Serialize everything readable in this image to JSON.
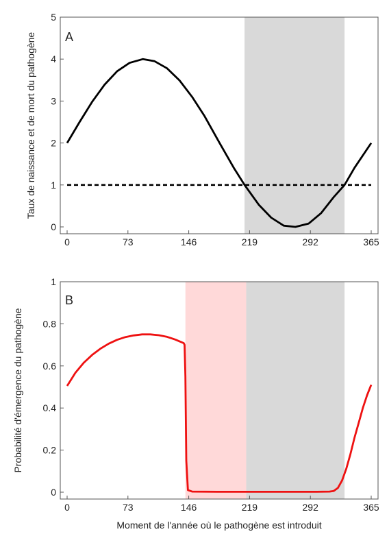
{
  "xlabel": "Moment de l'année où le pathogène est introduit",
  "chart_data": [
    {
      "type": "line",
      "panel_label": "A",
      "ylabel": "Taux de naissance et de mort du pathogène",
      "xlim": [
        0,
        365
      ],
      "ylim": [
        0,
        5
      ],
      "xticks": [
        0,
        73,
        146,
        219,
        292,
        365
      ],
      "yticks": [
        0,
        1,
        2,
        3,
        4,
        5
      ],
      "shaded_regions": [
        {
          "from": 213,
          "to": 333,
          "color": "#d9d9d9"
        }
      ],
      "series": [
        {
          "style": "solid",
          "color": "#000000",
          "x": [
            0,
            15,
            30,
            45,
            60,
            75,
            91,
            105,
            120,
            135,
            150,
            165,
            183,
            200,
            213,
            230,
            245,
            260,
            274,
            290,
            305,
            320,
            333,
            345,
            365
          ],
          "y": [
            2.0,
            2.5,
            2.98,
            3.39,
            3.71,
            3.91,
            4.0,
            3.95,
            3.78,
            3.49,
            3.1,
            2.64,
            2.0,
            1.41,
            1.0,
            0.53,
            0.22,
            0.03,
            0.0,
            0.08,
            0.33,
            0.71,
            1.0,
            1.41,
            2.0
          ]
        },
        {
          "style": "dashed",
          "color": "#000000",
          "x": [
            0,
            365
          ],
          "y": [
            1,
            1
          ]
        }
      ]
    },
    {
      "type": "line",
      "panel_label": "B",
      "ylabel": "Probabilité d'émergence du pathogène",
      "xlim": [
        0,
        365
      ],
      "ylim": [
        0,
        1
      ],
      "xticks": [
        0,
        73,
        146,
        219,
        292,
        365
      ],
      "yticks": [
        0,
        0.2,
        0.4,
        0.6,
        0.8,
        1
      ],
      "ytick_labels": [
        "0",
        "0.2",
        "0.4",
        "0.6",
        "0.8",
        "1"
      ],
      "shaded_regions": [
        {
          "from": 142,
          "to": 215,
          "color": "#ffd9d9"
        },
        {
          "from": 215,
          "to": 333,
          "color": "#d9d9d9"
        }
      ],
      "series": [
        {
          "style": "solid",
          "color": "#ee1111",
          "x": [
            0,
            10,
            20,
            30,
            40,
            50,
            60,
            70,
            80,
            90,
            100,
            110,
            120,
            130,
            140,
            141,
            142,
            143,
            145,
            150,
            180,
            210,
            240,
            270,
            300,
            315,
            320,
            325,
            330,
            335,
            340,
            345,
            350,
            355,
            360,
            365
          ],
          "y": [
            0.505,
            0.568,
            0.615,
            0.652,
            0.682,
            0.706,
            0.724,
            0.737,
            0.745,
            0.75,
            0.75,
            0.746,
            0.738,
            0.725,
            0.708,
            0.7,
            0.55,
            0.15,
            0.01,
            0.003,
            0.002,
            0.002,
            0.002,
            0.002,
            0.002,
            0.003,
            0.006,
            0.02,
            0.055,
            0.11,
            0.18,
            0.26,
            0.33,
            0.4,
            0.46,
            0.51
          ]
        }
      ]
    }
  ]
}
